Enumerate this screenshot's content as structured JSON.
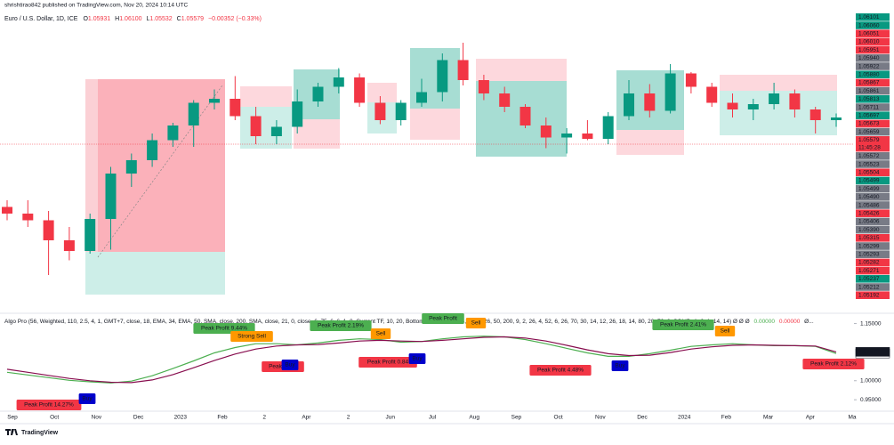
{
  "header": {
    "publisher": "shrishtirao842 published on TradingView.com, Nov 20, 2024 10:14 UTC",
    "symbol": "Euro / U.S. Dollar, 1D, ICE",
    "ohlc": [
      {
        "key": "O",
        "value": "1.05931"
      },
      {
        "key": "H",
        "value": "1.06100"
      },
      {
        "key": "L",
        "value": "1.05532"
      },
      {
        "key": "C",
        "value": "1.05579"
      }
    ],
    "change": "−0.00352 (−0.33%)"
  },
  "price_labels": [
    {
      "text": "1.06101",
      "color": "#089981"
    },
    {
      "text": "1.06060",
      "color": "#089981"
    },
    {
      "text": "1.06051",
      "color": "#f23645"
    },
    {
      "text": "1.06010",
      "color": "#f23645"
    },
    {
      "text": "1.05951",
      "color": "#f23645"
    },
    {
      "text": "1.05940",
      "color": "#787b86"
    },
    {
      "text": "1.05922",
      "color": "#787b86"
    },
    {
      "text": "1.05880",
      "color": "#089981"
    },
    {
      "text": "1.05867",
      "color": "#f23645"
    },
    {
      "text": "1.05861",
      "color": "#787b86"
    },
    {
      "text": "1.05813",
      "color": "#089981"
    },
    {
      "text": "1.05711",
      "color": "#787b86"
    },
    {
      "text": "1.05697",
      "color": "#089981"
    },
    {
      "text": "1.05673",
      "color": "#f23645"
    },
    {
      "text": "1.05659",
      "color": "#787b86"
    },
    {
      "text": "1.05579",
      "color": "#f23645",
      "countdown": "11:45:28"
    },
    {
      "text": "1.05572",
      "color": "#787b86"
    },
    {
      "text": "1.05523",
      "color": "#787b86"
    },
    {
      "text": "1.05504",
      "color": "#f23645"
    },
    {
      "text": "1.05499",
      "color": "#089981"
    },
    {
      "text": "1.05499",
      "color": "#787b86"
    },
    {
      "text": "1.05490",
      "color": "#787b86"
    },
    {
      "text": "1.05486",
      "color": "#787b86"
    },
    {
      "text": "1.05426",
      "color": "#f23645"
    },
    {
      "text": "1.05406",
      "color": "#787b86"
    },
    {
      "text": "1.05390",
      "color": "#787b86"
    },
    {
      "text": "1.05315",
      "color": "#f23645"
    },
    {
      "text": "1.05299",
      "color": "#787b86"
    },
    {
      "text": "1.05293",
      "color": "#787b86"
    },
    {
      "text": "1.05282",
      "color": "#f23645"
    },
    {
      "text": "1.05271",
      "color": "#f23645"
    },
    {
      "text": "1.05237",
      "color": "#089981"
    },
    {
      "text": "1.05212",
      "color": "#787b86"
    },
    {
      "text": "1.05192",
      "color": "#f23645"
    }
  ],
  "indicator_legend": {
    "text": "Algo Pro (56, Weighted, 110, 2.5, 4, 1, GMT+7, close, 18, EMA, 34, EMA, 50, SMA, close, 200, SMA, close, 21, 0, close, 6, 75, 6, 6, 1, 0, Current TF, 10, 20, Bottom, Peak 1, 60, 14, 26, 9, 26, 50, 200, 9, 2, 26, 4, 52, 6, 26, 70, 30, 14, 12, 26, 18, 14, 80, 20, 70, 8, SOLID, 1, 2, 1, 14, 14) Ø Ø Ø",
    "value_up": "0.00000",
    "value_down": "0.00000",
    "tail": "Ø..."
  },
  "signals": [
    {
      "text": "Peak Profit 14.27%",
      "color": "#f23645"
    },
    {
      "text": "Buy",
      "color": "#0000cc"
    },
    {
      "text": "Peak Profit 9.44%",
      "color": "#4caf50"
    },
    {
      "text": "Strong Sell",
      "color": "#ff9800"
    },
    {
      "text": "Peak Profit",
      "color": "#f23645"
    },
    {
      "text": "Buy",
      "color": "#0000cc"
    },
    {
      "text": "Peak Profit 2.19%",
      "color": "#4caf50"
    },
    {
      "text": "Sell",
      "color": "#ff9800"
    },
    {
      "text": "Peak Profit 0.84",
      "color": "#f23645"
    },
    {
      "text": "Buy",
      "color": "#0000cc"
    },
    {
      "text": "Peak Profit",
      "color": "#4caf50"
    },
    {
      "text": "Sell",
      "color": "#ff9800"
    },
    {
      "text": "Peak Profit 4.48%",
      "color": "#f23645"
    },
    {
      "text": "Buy",
      "color": "#0000cc"
    },
    {
      "text": "Peak Profit 2.41%",
      "color": "#4caf50"
    },
    {
      "text": "Sell",
      "color": "#ff9800"
    },
    {
      "text": "Peak Profit 2.12%",
      "color": "#f23645"
    }
  ],
  "x_axis_labels": [
    "Sep",
    "Oct",
    "Nov",
    "Dec",
    "2023",
    "Feb",
    "2",
    "Apr",
    "2",
    "Jun",
    "Jul",
    "Aug",
    "Sep",
    "Oct",
    "Nov",
    "Dec",
    "2024",
    "Feb",
    "Mar",
    "Apr",
    "Ma"
  ],
  "footer": "TradingView",
  "chart_data": [
    {
      "type": "candlestick",
      "up_color": "#089981",
      "down_color": "#f23645",
      "ylim": [
        0.93,
        1.15
      ],
      "open": [
        1.005,
        1.0,
        0.995,
        0.98,
        0.972,
        0.996,
        1.03,
        1.04,
        1.055,
        1.066,
        1.083,
        1.086,
        1.073,
        1.058,
        1.065,
        1.084,
        1.095,
        1.102,
        1.083,
        1.07,
        1.083,
        1.091,
        1.115,
        1.1,
        1.09,
        1.08,
        1.066,
        1.057,
        1.06,
        1.056,
        1.073,
        1.09,
        1.077,
        1.105,
        1.095,
        1.083,
        1.078,
        1.082,
        1.09,
        1.078,
        1.07
      ],
      "high": [
        1.01,
        1.01,
        1.002,
        0.99,
        1.0,
        1.035,
        1.045,
        1.06,
        1.068,
        1.085,
        1.093,
        1.103,
        1.08,
        1.07,
        1.093,
        1.098,
        1.109,
        1.105,
        1.088,
        1.085,
        1.101,
        1.12,
        1.128,
        1.104,
        1.095,
        1.082,
        1.072,
        1.064,
        1.07,
        1.076,
        1.1,
        1.097,
        1.112,
        1.106,
        1.098,
        1.09,
        1.086,
        1.098,
        1.093,
        1.08,
        1.075
      ],
      "low": [
        0.995,
        0.99,
        0.954,
        0.965,
        0.97,
        0.973,
        1.02,
        1.035,
        1.05,
        1.05,
        1.078,
        1.07,
        1.052,
        1.052,
        1.06,
        1.08,
        1.09,
        1.08,
        1.067,
        1.066,
        1.08,
        1.084,
        1.096,
        1.085,
        1.076,
        1.064,
        1.049,
        1.045,
        1.055,
        1.052,
        1.07,
        1.072,
        1.075,
        1.09,
        1.08,
        1.072,
        1.07,
        1.078,
        1.072,
        1.06,
        1.065
      ],
      "close": [
        1.0,
        0.995,
        0.98,
        0.972,
        0.996,
        1.03,
        1.04,
        1.055,
        1.066,
        1.083,
        1.086,
        1.073,
        1.058,
        1.065,
        1.084,
        1.095,
        1.102,
        1.083,
        1.07,
        1.083,
        1.091,
        1.115,
        1.1,
        1.09,
        1.08,
        1.066,
        1.057,
        1.06,
        1.056,
        1.073,
        1.09,
        1.077,
        1.105,
        1.095,
        1.083,
        1.078,
        1.082,
        1.09,
        1.078,
        1.07,
        1.072
      ]
    },
    {
      "type": "line",
      "ylim": [
        0.92,
        1.17
      ],
      "yticks": [
        {
          "value": 0.95,
          "label": "0.95000"
        },
        {
          "value": 1,
          "label": "1.00000"
        },
        {
          "value": 1.15,
          "label": "1.15000"
        }
      ],
      "series": [
        {
          "name": "fast",
          "color": "#4caf50",
          "value_label": "1.07143",
          "values": [
            1.022,
            1.015,
            1.008,
            1.001,
            0.997,
            0.994,
            0.999,
            1.013,
            1.032,
            1.052,
            1.073,
            1.087,
            1.097,
            1.097,
            1.094,
            1.099,
            1.106,
            1.11,
            1.108,
            1.101,
            1.103,
            1.11,
            1.115,
            1.117,
            1.115,
            1.108,
            1.097,
            1.085,
            1.073,
            1.064,
            1.064,
            1.071,
            1.08,
            1.09,
            1.094,
            1.097,
            1.094,
            1.092,
            1.092,
            1.09,
            1.07143
          ]
        },
        {
          "name": "slow",
          "color": "#880e4f",
          "value_label": "1.07572",
          "values": [
            1.03,
            1.022,
            1.014,
            1.006,
            1.0,
            0.996,
            0.995,
            1.002,
            1.016,
            1.034,
            1.053,
            1.07,
            1.083,
            1.091,
            1.094,
            1.095,
            1.099,
            1.104,
            1.106,
            1.104,
            1.103,
            1.106,
            1.11,
            1.114,
            1.115,
            1.112,
            1.104,
            1.093,
            1.081,
            1.071,
            1.066,
            1.067,
            1.074,
            1.083,
            1.089,
            1.093,
            1.094,
            1.093,
            1.092,
            1.091,
            1.07572
          ]
        }
      ]
    }
  ]
}
